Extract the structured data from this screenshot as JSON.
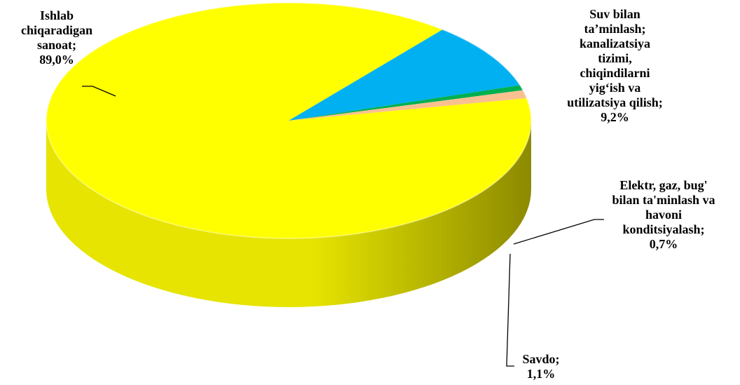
{
  "chart_data": {
    "type": "pie",
    "style": "3d",
    "slices": [
      {
        "name": "Ishlab chiqaradigan sanoat",
        "value": 89.0,
        "value_label": "89,0%",
        "color": "#FFFF00",
        "side_dark": "#8C8A00",
        "side_light": "#E6E400"
      },
      {
        "name": "Suv bilan ta’minlash; kanalizatsiya tizimi, chiqindilarni yig‘ish va utilizatsiya qilish",
        "value": 9.2,
        "value_label": "9,2%",
        "color": "#00B0F0",
        "side_dark": "#005F86",
        "side_light": "#008CC4"
      },
      {
        "name": "Elektr, gaz, bug' bilan ta'minlash va havoni konditsiyalash",
        "value": 0.7,
        "value_label": "0,7%",
        "color": "#00B050",
        "side_dark": "#006A30",
        "side_light": "#00A04A"
      },
      {
        "name": "Savdo",
        "value": 1.1,
        "value_label": "1,1%",
        "color": "#FAC090",
        "side_dark": "#A07050",
        "side_light": "#E8B080"
      }
    ],
    "labels": [
      {
        "lines": [
          "Ishlab",
          "chiqaradigan",
          "sanoat;",
          "89,0%"
        ]
      },
      {
        "lines": [
          "Suv bilan",
          "ta’minlash;",
          "kanalizatsiya",
          "tizimi,",
          "chiqindilarni",
          "yig‘ish va",
          "utilizatsiya qilish;",
          "9,2%"
        ]
      },
      {
        "lines": [
          "Elektr, gaz, bug'",
          "bilan ta'minlash va",
          "havoni",
          "konditsiyalash;",
          "0,7%"
        ]
      },
      {
        "lines": [
          "Savdo;",
          "1,1%"
        ]
      }
    ]
  }
}
